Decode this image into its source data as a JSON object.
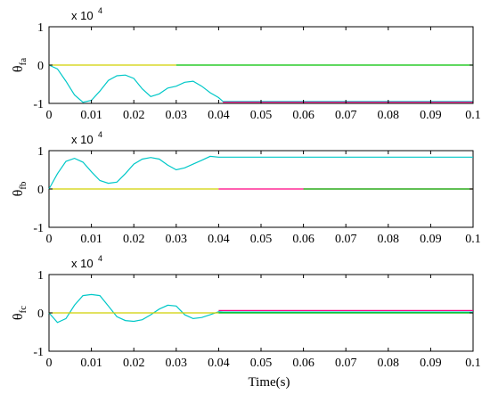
{
  "chart_data": [
    {
      "type": "line",
      "ylabel": "θ",
      "ylabel_sub": "fa",
      "exponent_base": "x 10",
      "exponent_power": "4",
      "xlim": [
        0,
        0.1
      ],
      "ylim": [
        -1,
        1
      ],
      "xticks": [
        "0",
        "0.01",
        "0.02",
        "0.03",
        "0.04",
        "0.05",
        "0.06",
        "0.07",
        "0.08",
        "0.09",
        "0.1"
      ],
      "yticks": [
        "-1",
        "0",
        "1"
      ],
      "series": [
        {
          "color": "#00c8c8",
          "x": [
            0,
            0.002,
            0.004,
            0.006,
            0.008,
            0.01,
            0.012,
            0.014,
            0.016,
            0.018,
            0.02,
            0.022,
            0.024,
            0.026,
            0.028,
            0.03,
            0.032,
            0.034,
            0.036,
            0.038,
            0.04,
            0.041,
            0.1
          ],
          "y": [
            0,
            -0.1,
            -0.42,
            -0.78,
            -0.97,
            -0.92,
            -0.68,
            -0.4,
            -0.28,
            -0.26,
            -0.35,
            -0.62,
            -0.82,
            -0.75,
            -0.6,
            -0.55,
            -0.45,
            -0.42,
            -0.55,
            -0.72,
            -0.85,
            -0.95,
            -0.95
          ]
        },
        {
          "color": "#d0d000",
          "x": [
            0,
            0.03
          ],
          "y": [
            0,
            0
          ]
        },
        {
          "color": "#00c000",
          "x": [
            0.03,
            0.1
          ],
          "y": [
            0,
            0
          ]
        },
        {
          "color": "#ff0080",
          "x": [
            0.041,
            0.1
          ],
          "y": [
            -0.97,
            -0.97
          ]
        }
      ]
    },
    {
      "type": "line",
      "ylabel": "θ",
      "ylabel_sub": "fb",
      "exponent_base": "x 10",
      "exponent_power": "4",
      "xlim": [
        0,
        0.1
      ],
      "ylim": [
        -1,
        1
      ],
      "xticks": [
        "0",
        "0.01",
        "0.02",
        "0.03",
        "0.04",
        "0.05",
        "0.06",
        "0.07",
        "0.08",
        "0.09",
        "0.1"
      ],
      "yticks": [
        "-1",
        "0",
        "1"
      ],
      "series": [
        {
          "color": "#00c8c8",
          "x": [
            0,
            0.002,
            0.004,
            0.006,
            0.008,
            0.01,
            0.012,
            0.014,
            0.016,
            0.018,
            0.02,
            0.022,
            0.024,
            0.026,
            0.028,
            0.03,
            0.032,
            0.034,
            0.036,
            0.038,
            0.04,
            0.1
          ],
          "y": [
            0,
            0.4,
            0.72,
            0.8,
            0.7,
            0.45,
            0.22,
            0.15,
            0.18,
            0.4,
            0.65,
            0.78,
            0.82,
            0.78,
            0.62,
            0.5,
            0.55,
            0.65,
            0.75,
            0.85,
            0.83,
            0.83
          ]
        },
        {
          "color": "#d0d000",
          "x": [
            0,
            0.04
          ],
          "y": [
            0,
            0
          ]
        },
        {
          "color": "#ff0080",
          "x": [
            0.04,
            0.1
          ],
          "y": [
            0,
            0
          ]
        },
        {
          "color": "#00c000",
          "x": [
            0.06,
            0.1
          ],
          "y": [
            0,
            0
          ]
        }
      ]
    },
    {
      "type": "line",
      "ylabel": "θ",
      "ylabel_sub": "fc",
      "exponent_base": "x 10",
      "exponent_power": "4",
      "xlim": [
        0,
        0.1
      ],
      "ylim": [
        -1,
        1
      ],
      "xticks": [
        "0",
        "0.01",
        "0.02",
        "0.03",
        "0.04",
        "0.05",
        "0.06",
        "0.07",
        "0.08",
        "0.09",
        "0.1"
      ],
      "yticks": [
        "-1",
        "0",
        "1"
      ],
      "series": [
        {
          "color": "#00c8c8",
          "x": [
            0,
            0.002,
            0.004,
            0.006,
            0.008,
            0.01,
            0.012,
            0.014,
            0.016,
            0.018,
            0.02,
            0.022,
            0.024,
            0.026,
            0.028,
            0.03,
            0.032,
            0.034,
            0.036,
            0.038,
            0.04,
            0.041,
            0.1
          ],
          "y": [
            0,
            -0.25,
            -0.15,
            0.2,
            0.45,
            0.48,
            0.45,
            0.18,
            -0.1,
            -0.2,
            -0.22,
            -0.18,
            -0.05,
            0.1,
            0.2,
            0.18,
            -0.05,
            -0.15,
            -0.12,
            -0.05,
            0.03,
            0.02,
            0.02
          ]
        },
        {
          "color": "#d0d000",
          "x": [
            0,
            0.04
          ],
          "y": [
            0,
            0
          ]
        },
        {
          "color": "#ff0080",
          "x": [
            0.04,
            0.1
          ],
          "y": [
            0.06,
            0.06
          ]
        },
        {
          "color": "#00c000",
          "x": [
            0.04,
            0.1
          ],
          "y": [
            0.0,
            0.0
          ]
        }
      ]
    }
  ],
  "xlabel": "Time(s)"
}
